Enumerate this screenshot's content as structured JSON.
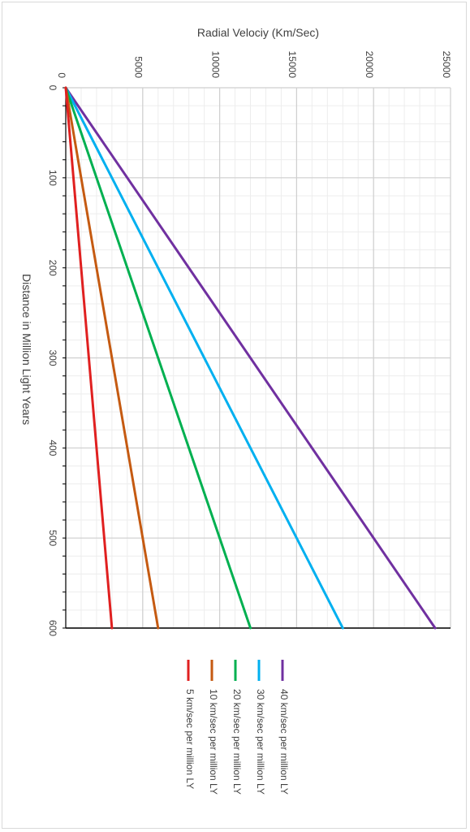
{
  "chart_data": {
    "type": "line",
    "orientation": "rotated 90° clockwise",
    "title": "",
    "x_axis": {
      "label": "Distance in Million Light Years",
      "range": [
        0,
        600
      ],
      "ticks": [
        "0",
        "100",
        "200",
        "300",
        "400",
        "500",
        "600"
      ]
    },
    "y_axis": {
      "label": "Radial Velociy (Km/Sec)",
      "range": [
        0,
        25000
      ],
      "ticks": [
        "0",
        "5000",
        "10000",
        "15000",
        "20000",
        "25000"
      ]
    },
    "grid": true,
    "legend_position": "bottom",
    "series": [
      {
        "name": "40 km/sec per million LY",
        "color": "#7030a0",
        "x": [
          0,
          600
        ],
        "y": [
          0,
          24000
        ]
      },
      {
        "name": "30 km/sec per million LY",
        "color": "#00b0f0",
        "x": [
          0,
          600
        ],
        "y": [
          0,
          18000
        ]
      },
      {
        "name": "20 km/sec per million LY",
        "color": "#00b050",
        "x": [
          0,
          600
        ],
        "y": [
          0,
          12000
        ]
      },
      {
        "name": "10 km/sec per million LY",
        "color": "#c55a11",
        "x": [
          0,
          600
        ],
        "y": [
          0,
          6000
        ]
      },
      {
        "name": "5 km/sec per million LY",
        "color": "#e02020",
        "x": [
          0,
          600
        ],
        "y": [
          0,
          3000
        ]
      }
    ]
  }
}
